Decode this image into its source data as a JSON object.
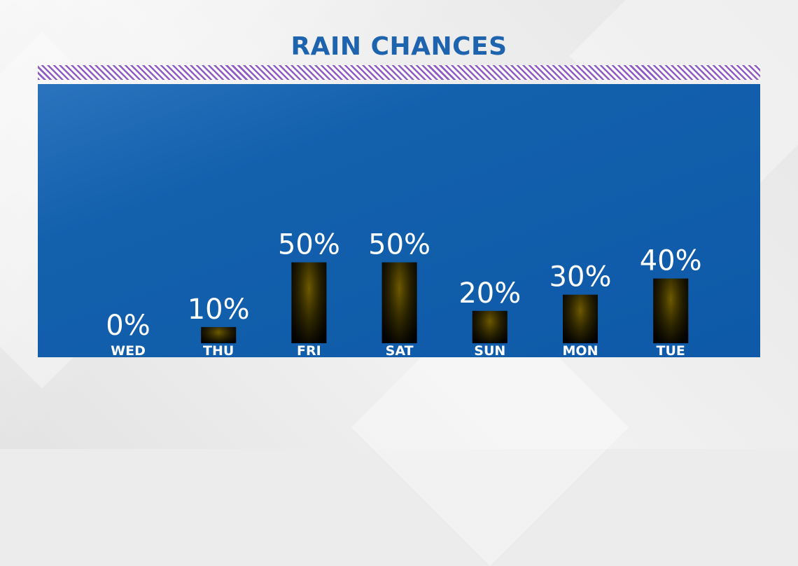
{
  "colors": {
    "title": "#1e63ad",
    "panel": "#0f5ba9",
    "stripe": "#8e5cc3",
    "bar_center": "#6e5a00",
    "bar_edge": "#020202",
    "label": "#ffffff"
  },
  "chart_data": {
    "type": "bar",
    "title": "RAIN CHANCES",
    "categories": [
      "WED",
      "THU",
      "FRI",
      "SAT",
      "SUN",
      "MON",
      "TUE"
    ],
    "values": [
      0,
      10,
      50,
      50,
      20,
      30,
      40
    ],
    "value_labels": [
      "0%",
      "10%",
      "50%",
      "50%",
      "20%",
      "30%",
      "40%"
    ],
    "ylim": [
      0,
      100
    ],
    "xlabel": "",
    "ylabel": "",
    "grid": false,
    "legend": "none"
  }
}
